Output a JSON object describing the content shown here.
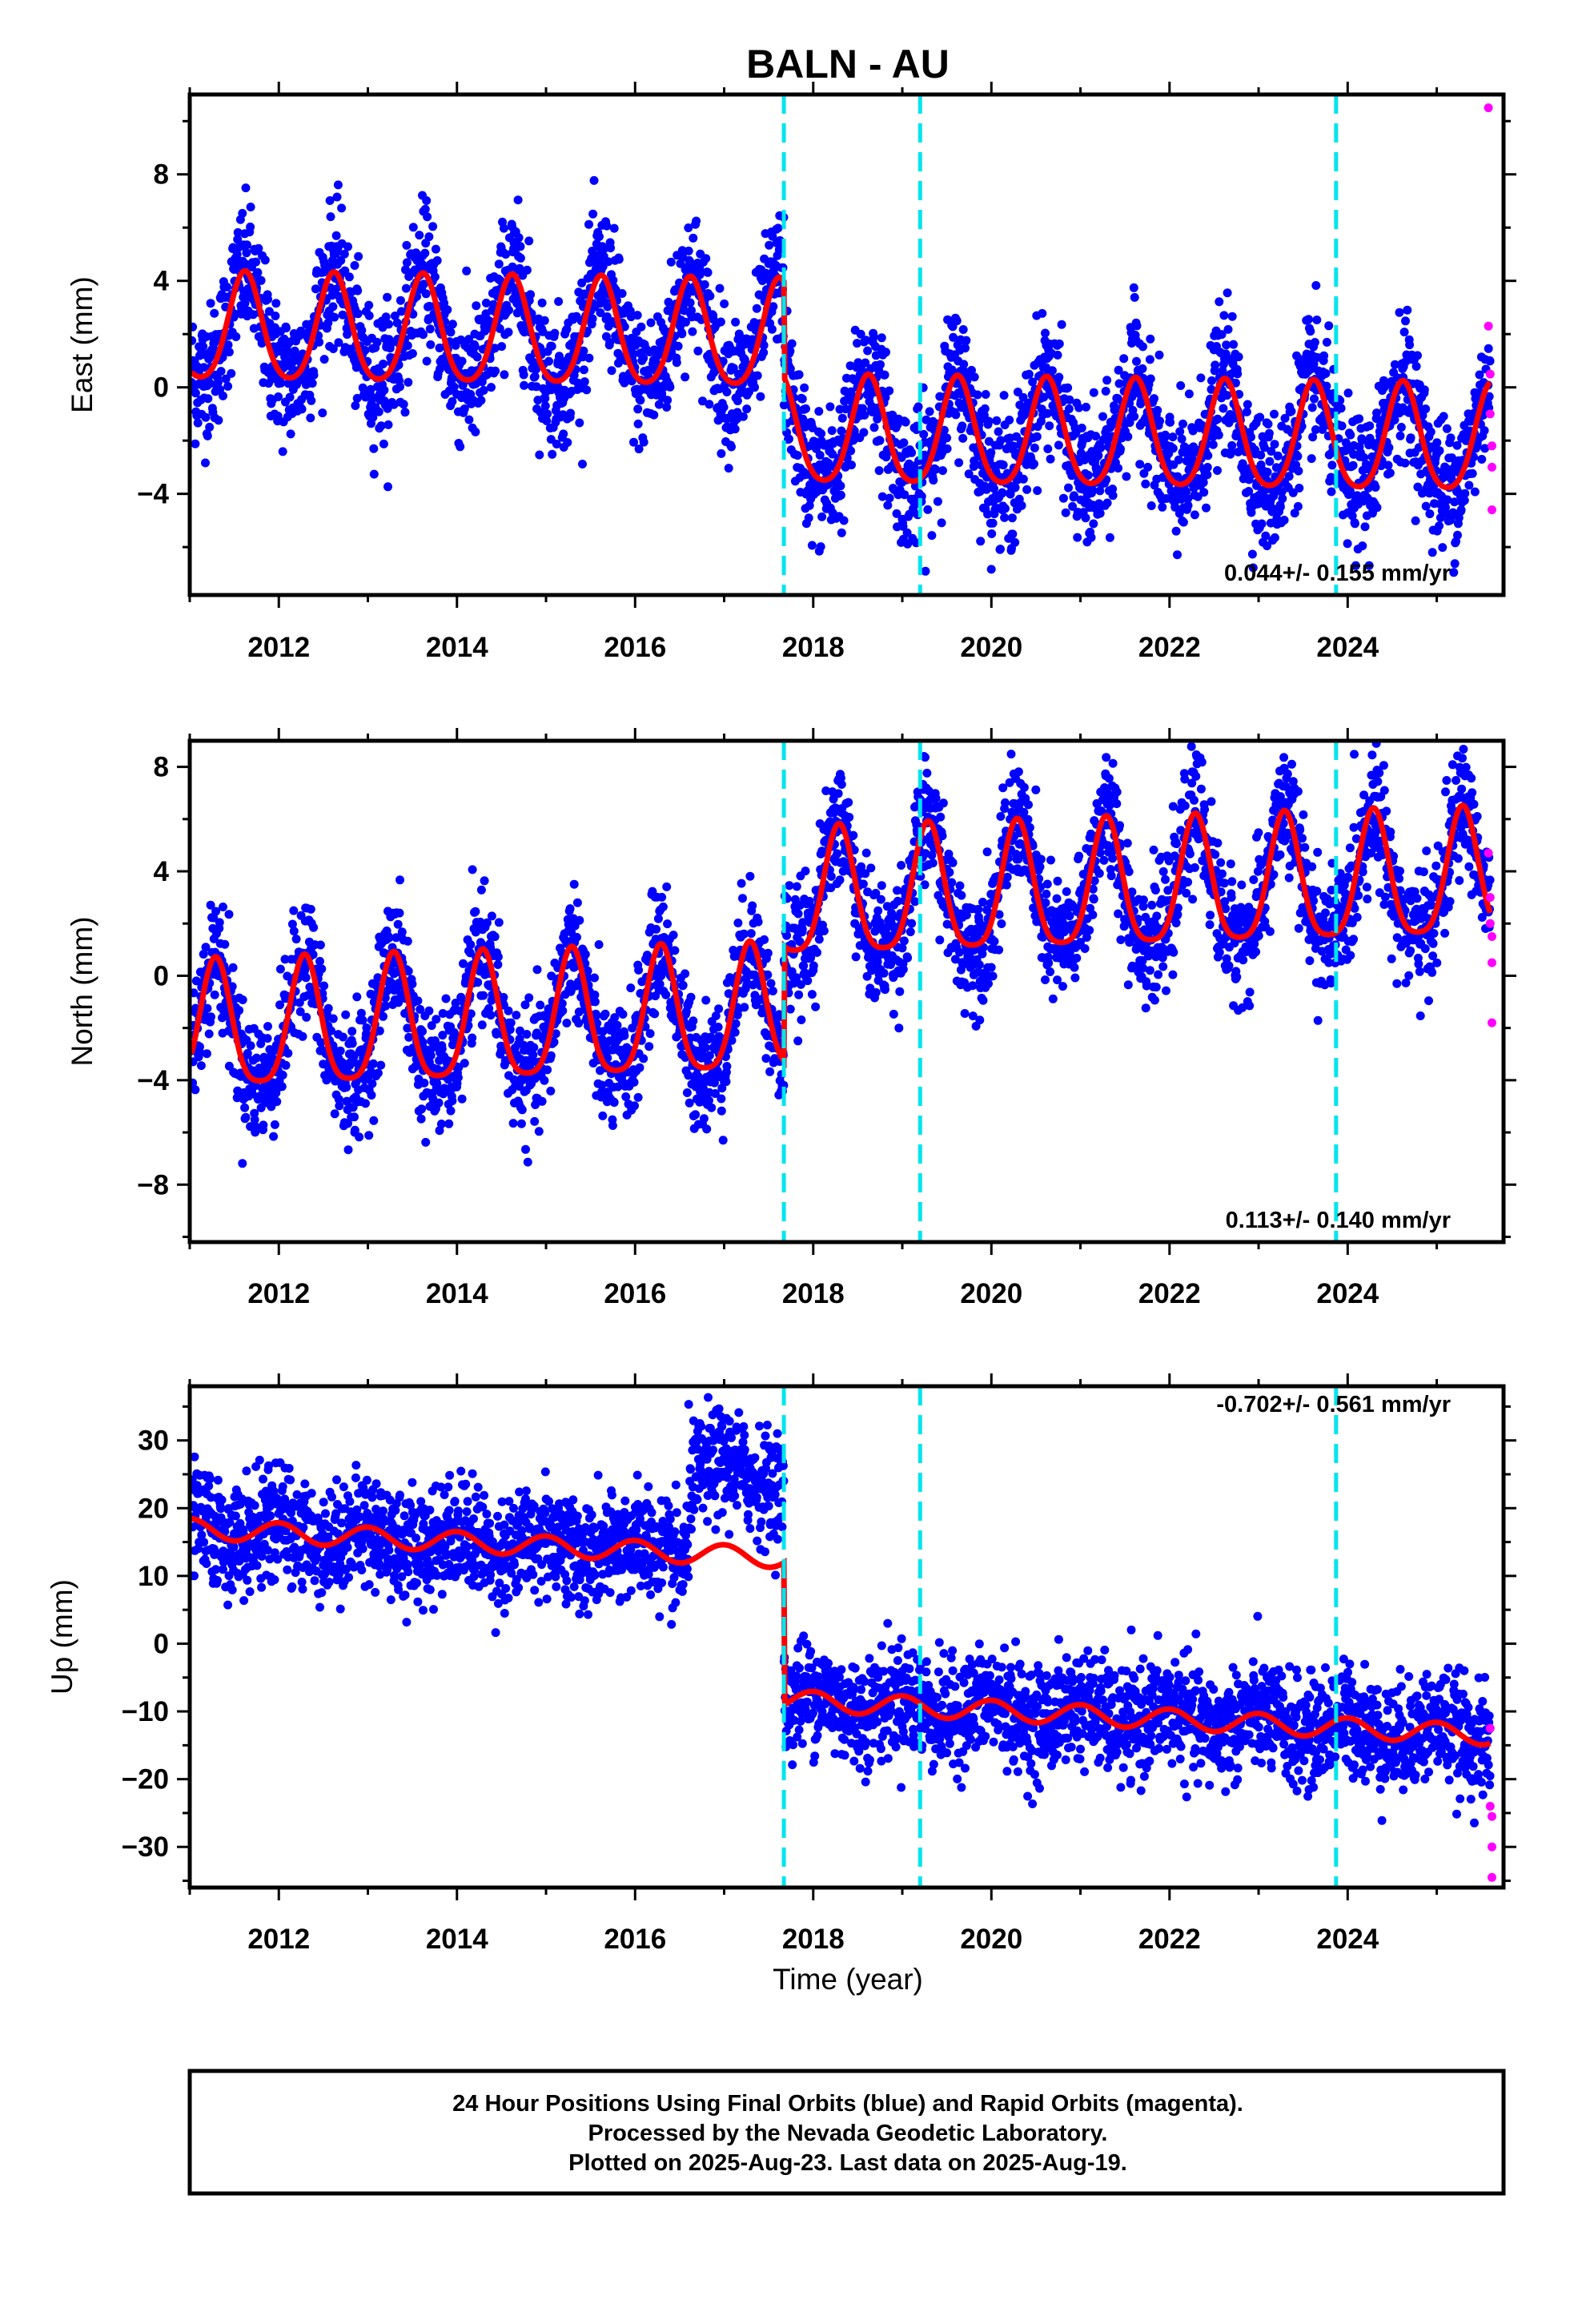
{
  "chart_data": {
    "title": "BALN - AU",
    "xlabel": "Time (year)",
    "x_ticks": [
      2012,
      2014,
      2016,
      2018,
      2020,
      2022,
      2024
    ],
    "xlim": [
      2011.0,
      2025.75
    ],
    "series_legend": [
      {
        "name": "Final Orbits",
        "color": "#0000ff"
      },
      {
        "name": "Rapid Orbits",
        "color": "#ff00ff"
      },
      {
        "name": "model",
        "color": "#ff0000"
      }
    ],
    "events": [
      2017.67,
      2019.2,
      2023.87
    ],
    "event_color": "#00e5ee",
    "panels": [
      {
        "type": "scatter",
        "ylabel": "East (mm)",
        "ylim": [
          -7.8,
          11.0
        ],
        "y_ticks": [
          -4,
          0,
          4,
          8
        ],
        "rate_text": "0.044+/- 0.155 mm/yr",
        "model": {
          "offset_before": 2.1,
          "offset_after": -1.5,
          "rate": -0.04,
          "annual_amp": 2.0,
          "annual_phase": 2011.62,
          "semiannual_amp": 0.3,
          "scatter": 1.25
        },
        "rapid_points": [
          [
            2025.58,
            10.5
          ],
          [
            2025.58,
            2.3
          ],
          [
            2025.6,
            0.5
          ],
          [
            2025.6,
            -1.0
          ],
          [
            2025.62,
            -2.2
          ],
          [
            2025.62,
            -3.0
          ],
          [
            2025.62,
            -4.6
          ]
        ]
      },
      {
        "type": "scatter",
        "ylabel": "North (mm)",
        "ylim": [
          -10.2,
          9.0
        ],
        "y_ticks": [
          -8,
          -4,
          0,
          4,
          8
        ],
        "rate_text": "0.113+/- 0.140 mm/yr",
        "model": {
          "offset_before": -2.2,
          "offset_after": 2.2,
          "rate": 0.1,
          "annual_amp": 2.4,
          "annual_phase": 2011.29,
          "semiannual_amp": 0.5,
          "scatter": 1.15
        },
        "rapid_points": [
          [
            2025.58,
            4.7
          ],
          [
            2025.6,
            3.0
          ],
          [
            2025.6,
            2.0
          ],
          [
            2025.62,
            1.5
          ],
          [
            2025.62,
            0.5
          ],
          [
            2025.62,
            -1.8
          ]
        ]
      },
      {
        "type": "scatter",
        "ylabel": "Up (mm)",
        "ylim": [
          -36.0,
          38.0
        ],
        "y_ticks": [
          -30,
          -20,
          -10,
          0,
          10,
          20,
          30
        ],
        "rate_text": "-0.702+/- 0.561 mm/yr",
        "model": {
          "offset_before": 17.0,
          "offset_after": -4.0,
          "rate": -0.65,
          "annual_amp": 1.5,
          "annual_phase": 2011.0,
          "semiannual_amp": 0.0,
          "scatter": 4.0,
          "step_2016": {
            "start": 2016.6,
            "end": 2017.67,
            "extra": 12.0
          }
        },
        "rapid_points": [
          [
            2025.6,
            -12.5
          ],
          [
            2025.6,
            -24.0
          ],
          [
            2025.62,
            -25.5
          ],
          [
            2025.62,
            -30.0
          ],
          [
            2025.62,
            -34.5
          ]
        ]
      }
    ]
  },
  "caption": {
    "line1": "24 Hour Positions Using Final Orbits (blue) and Rapid Orbits (magenta).",
    "line2": "Processed by the Nevada Geodetic Laboratory.",
    "line3": "Plotted on 2025-Aug-23. Last data on 2025-Aug-19."
  }
}
